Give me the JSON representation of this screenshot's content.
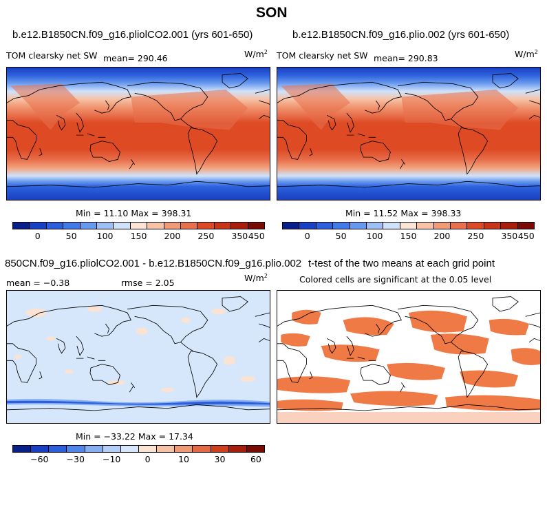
{
  "title": "SON",
  "panels": [
    {
      "title": "b.e12.B1850CN.f09_g16.pliolCO2.001 (yrs 601-650)",
      "variable": "TOM clearsky net SW",
      "mean": "mean= 290.46",
      "units_base": "W/m",
      "units_exp": "2",
      "minmax": "Min =  11.10 Max = 398.31",
      "colorbar": {
        "colors": [
          "#08208a",
          "#1740c4",
          "#2b5fdc",
          "#3f7ae8",
          "#6699f0",
          "#9cc0f5",
          "#cfe2fa",
          "#fde4d4",
          "#f7c2a6",
          "#f19a76",
          "#e8704d",
          "#dc4a25",
          "#c83418",
          "#a81e0c",
          "#7a0a04"
        ],
        "ticks": [
          "0",
          "50",
          "100",
          "150",
          "200",
          "250",
          "350",
          "450"
        ]
      }
    },
    {
      "title": "b.e12.B1850CN.f09_g16.plio.002 (yrs 601-650)",
      "variable": "TOM clearsky net SW",
      "mean": "mean= 290.83",
      "units_base": "W/m",
      "units_exp": "2",
      "minmax": "Min =  11.52 Max = 398.33",
      "colorbar": {
        "colors": [
          "#08208a",
          "#1740c4",
          "#2b5fdc",
          "#3f7ae8",
          "#6699f0",
          "#9cc0f5",
          "#cfe2fa",
          "#fde4d4",
          "#f7c2a6",
          "#f19a76",
          "#e8704d",
          "#dc4a25",
          "#c83418",
          "#a81e0c",
          "#7a0a04"
        ],
        "ticks": [
          "0",
          "50",
          "100",
          "150",
          "200",
          "250",
          "350",
          "450"
        ]
      }
    },
    {
      "title": "850CN.f09_g16.pliolCO2.001 - b.e12.B1850CN.f09_g16.plio.002",
      "stats_mean": "mean =  −0.38",
      "stats_rmse": "rmse =    2.05",
      "units_base": "W/m",
      "units_exp": "2",
      "minmax": "Min = −33.22 Max =  17.34",
      "colorbar": {
        "colors": [
          "#08208a",
          "#1740c4",
          "#2b5fdc",
          "#4f86ec",
          "#86aef2",
          "#b3cff7",
          "#d6e6fb",
          "#fbe3d3",
          "#f6c2a6",
          "#ef9a74",
          "#e46a45",
          "#cf3f1e",
          "#a81e0c",
          "#7a0a04"
        ],
        "ticks": [
          "−60",
          "−30",
          "−10",
          "0",
          "10",
          "30",
          "60"
        ]
      }
    },
    {
      "title": "t-test of the two means at each grid point",
      "subtitle": "Colored cells are significant at the 0.05 level"
    }
  ]
}
